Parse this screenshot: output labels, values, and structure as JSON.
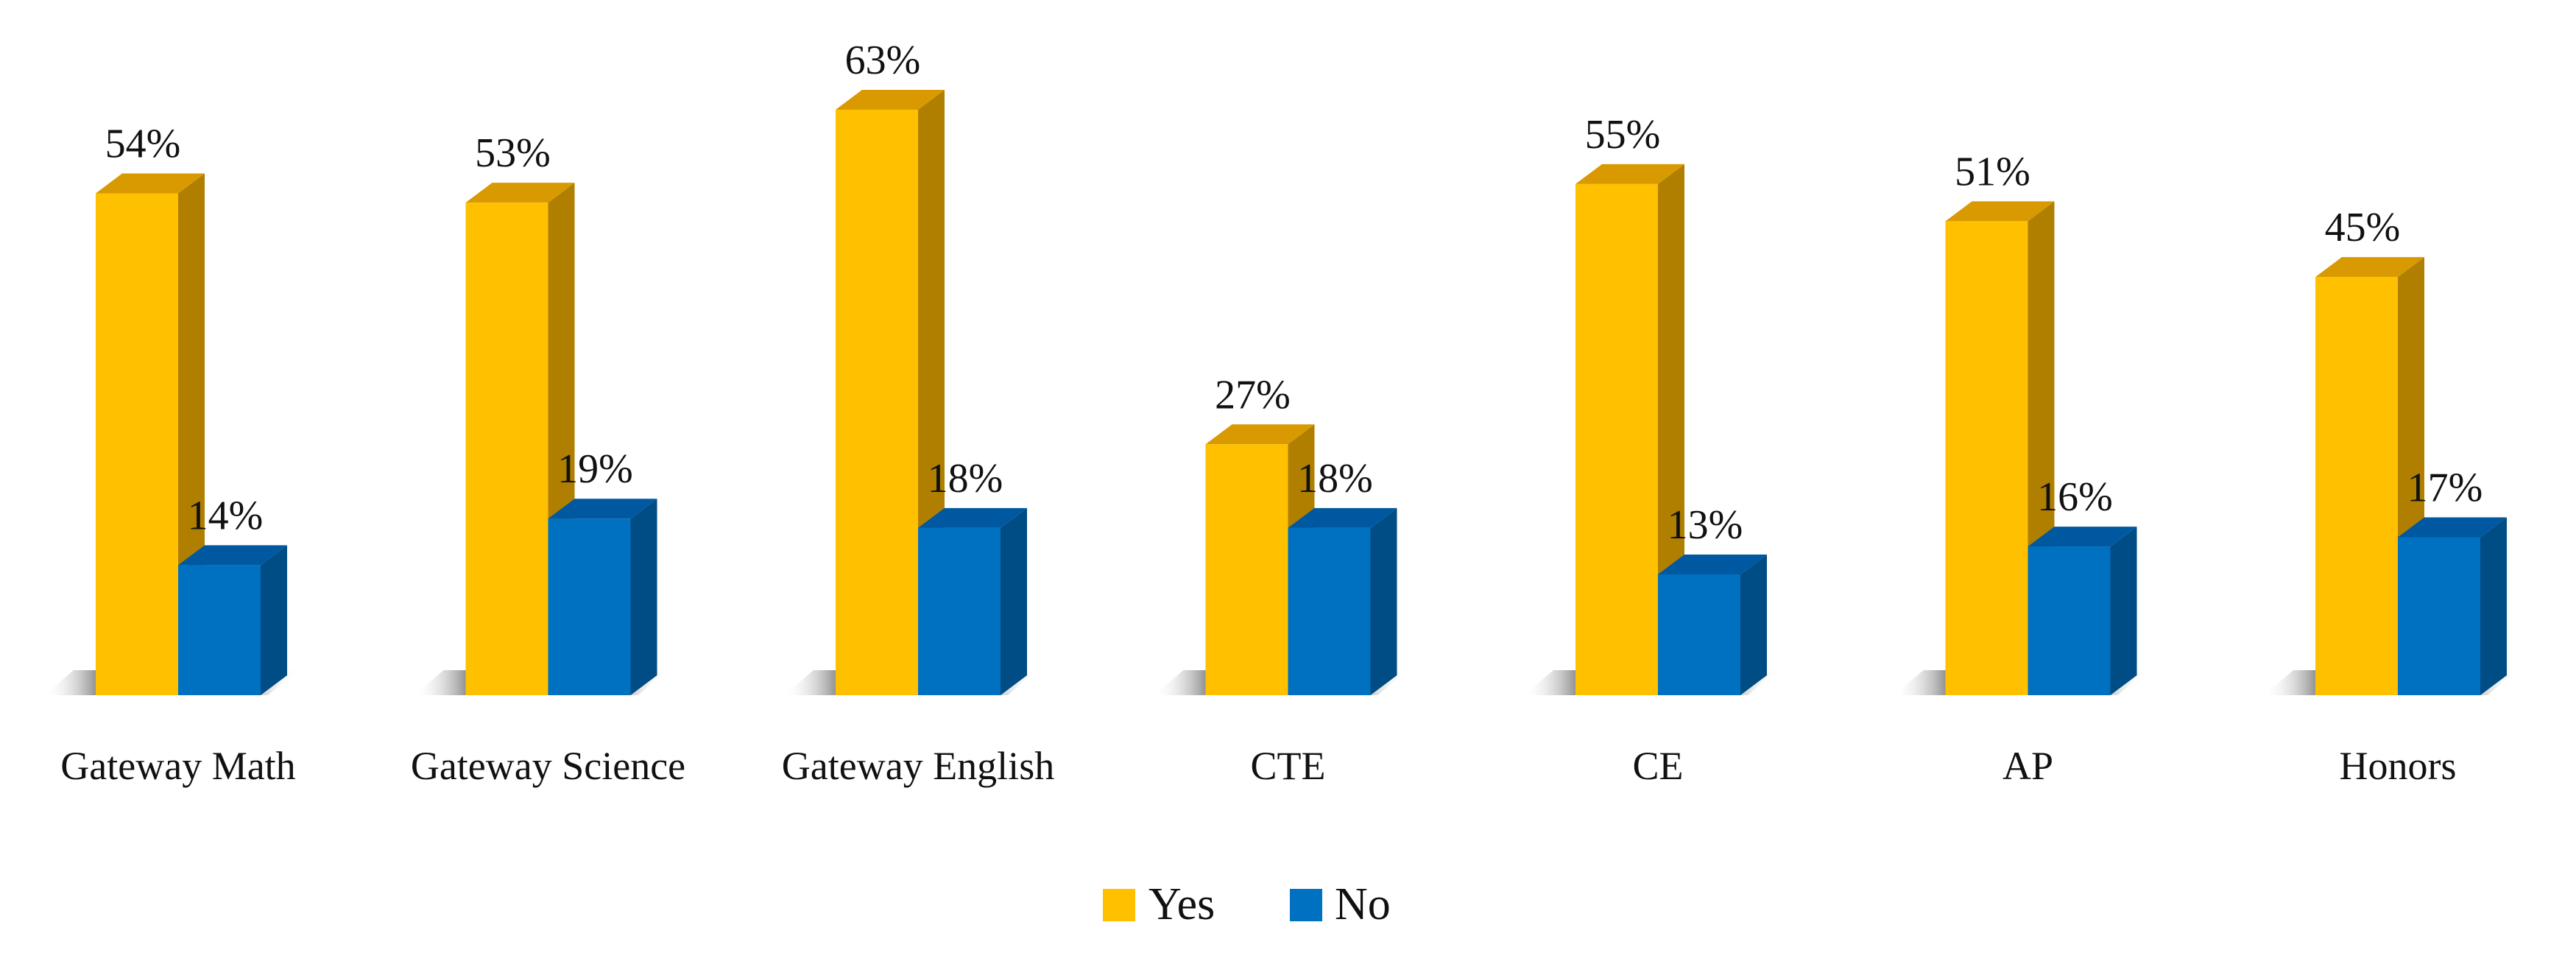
{
  "chart_data": {
    "type": "bar",
    "categories": [
      "Gateway Math",
      "Gateway Science",
      "Gateway English",
      "CTE",
      "CE",
      "AP",
      "Honors"
    ],
    "series": [
      {
        "name": "Yes",
        "values": [
          54,
          53,
          63,
          27,
          55,
          51,
          45
        ],
        "labels": [
          "54%",
          "53%",
          "63%",
          "27%",
          "55%",
          "51%",
          "45%"
        ]
      },
      {
        "name": "No",
        "values": [
          14,
          19,
          18,
          18,
          13,
          16,
          17
        ],
        "labels": [
          "14%",
          "19%",
          "18%",
          "18%",
          "13%",
          "16%",
          "17%"
        ]
      }
    ],
    "value_format": "percent",
    "ylim": [
      0,
      70
    ],
    "grid": false,
    "legend_position": "bottom-center",
    "style": "3d-column"
  },
  "colors": {
    "yes": "#FFC000",
    "no": "#0070C0"
  }
}
